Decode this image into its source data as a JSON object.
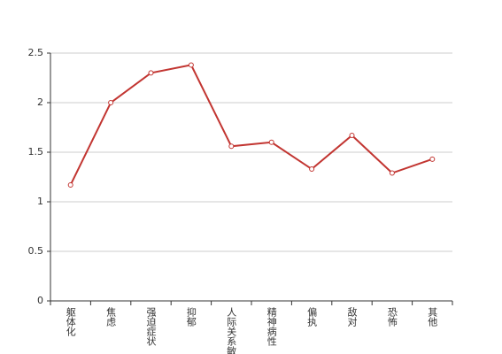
{
  "chart_data": {
    "type": "line",
    "categories": [
      "躯体化",
      "焦虑",
      "强迫症状",
      "抑郁",
      "人际关系敏感",
      "精神病性",
      "偏执",
      "敌对",
      "恐怖",
      "其他"
    ],
    "values": [
      1.17,
      2.0,
      2.3,
      2.38,
      1.56,
      1.6,
      1.33,
      1.67,
      1.29,
      1.43
    ],
    "color": "#c23531",
    "ylim": [
      0,
      2.5
    ],
    "yticks": [
      0,
      0.5,
      1,
      1.5,
      2,
      2.5
    ],
    "grid": true
  }
}
